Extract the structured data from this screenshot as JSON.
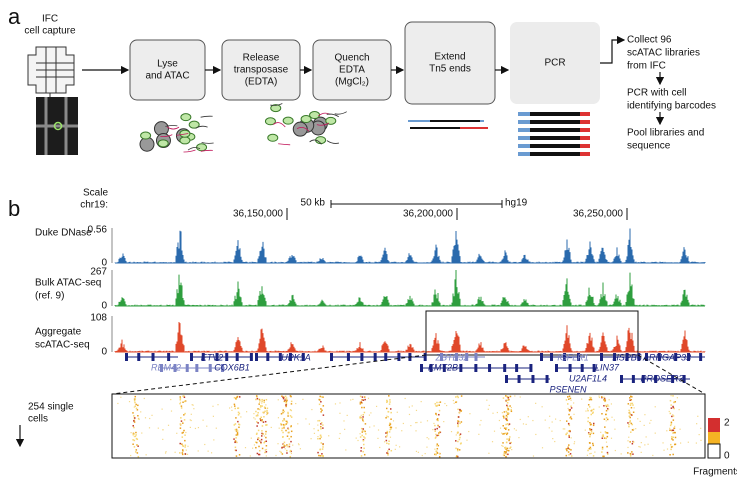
{
  "panel_a": {
    "label": "a",
    "capture": [
      "IFC",
      "cell capture"
    ],
    "steps": [
      [
        "Lyse",
        "and ATAC"
      ],
      [
        "Release",
        "transposase",
        "(EDTA)"
      ],
      [
        "Quench",
        "EDTA",
        "(MgCl₂)"
      ],
      [
        "Extend",
        "Tn5 ends"
      ],
      [
        "PCR"
      ]
    ],
    "downstream": [
      [
        "Collect 96",
        "scATAC libraries",
        "from IFC"
      ],
      [
        "PCR with cell",
        "identifying barcodes"
      ],
      [
        "Pool libraries and",
        "sequence"
      ]
    ]
  },
  "panel_b": {
    "label": "b",
    "scale_label": "Scale",
    "chrom": "chr19:",
    "scale_bar": "50 kb",
    "assembly": "hg19",
    "positions": [
      "36,150,000",
      "36,200,000",
      "36,250,000"
    ],
    "tracks": [
      {
        "name": [
          "Duke DNase"
        ],
        "max": 0.56,
        "min": 0
      },
      {
        "name": [
          "Bulk ATAC-seq",
          "(ref. 9)"
        ],
        "max": 267,
        "min": 0
      },
      {
        "name": [
          "Aggregate",
          "scATAC-seq"
        ],
        "max": 108,
        "min": 0
      }
    ],
    "genes": [
      "RBM42",
      "ETV2",
      "COX6B1",
      "UPK1A",
      "ZBTB32",
      "KMT2B",
      "IGFLR1",
      "U2AF1L4",
      "PSENEN",
      "HSPB6",
      "LIN37",
      "PROSER3",
      "ARHGAP33"
    ],
    "heatmap": {
      "label": [
        "254 single",
        "cells"
      ],
      "legend_max": 2,
      "legend_min": 0,
      "legend_title": "Fragments"
    }
  }
}
